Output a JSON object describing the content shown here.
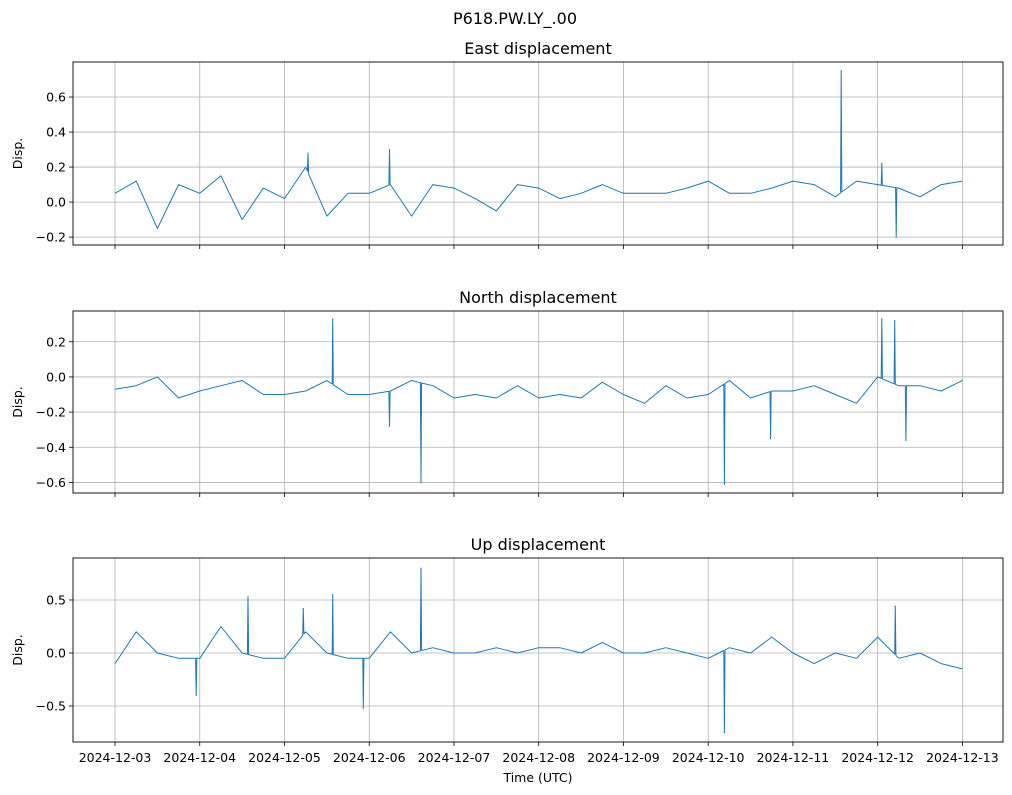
{
  "figure": {
    "suptitle": "P618.PW.LY_.00",
    "xlabel": "Time (UTC)"
  },
  "colors": {
    "line": "#1f77b4",
    "grid": "#b0b0b0"
  },
  "chart_data": [
    {
      "type": "line",
      "title": "East displacement",
      "ylabel": "Disp.",
      "ylim": [
        -0.245,
        0.8
      ],
      "yticks": [
        -0.2,
        0.0,
        0.2,
        0.4,
        0.6
      ],
      "ytick_labels": [
        "−0.2",
        "0.0",
        "0.2",
        "0.4",
        "0.6"
      ],
      "xlim": [
        "2024-12-02 12:06",
        "2024-12-13 11:30"
      ],
      "grid": true,
      "sample_step_hours": 6,
      "start": "2024-12-03 00:00",
      "values": [
        0.05,
        0.12,
        -0.15,
        0.1,
        0.05,
        0.15,
        -0.1,
        0.08,
        0.02,
        0.2,
        -0.08,
        0.05,
        0.05,
        0.1,
        -0.08,
        0.1,
        0.08,
        0.02,
        -0.05,
        0.1,
        0.08,
        0.02,
        0.05,
        0.1,
        0.05,
        0.05,
        0.05,
        0.08,
        0.12,
        0.05,
        0.05,
        0.08,
        0.12,
        0.1,
        0.03,
        0.12,
        0.1,
        0.08,
        0.03,
        0.1,
        0.12
      ],
      "spikes": [
        [
          "2024-12-05 06:40",
          0.28
        ],
        [
          "2024-12-06 05:45",
          0.3
        ],
        [
          "2024-12-11 13:40",
          0.75
        ],
        [
          "2024-12-12 01:10",
          0.22
        ],
        [
          "2024-12-12 05:15",
          -0.2
        ]
      ]
    },
    {
      "type": "line",
      "title": "North displacement",
      "ylabel": "Disp.",
      "ylim": [
        -0.66,
        0.375
      ],
      "yticks": [
        -0.6,
        -0.4,
        -0.2,
        0.0,
        0.2
      ],
      "ytick_labels": [
        "−0.6",
        "−0.4",
        "−0.2",
        "0.0",
        "0.2"
      ],
      "xlim": [
        "2024-12-02 12:06",
        "2024-12-13 11:30"
      ],
      "grid": true,
      "sample_step_hours": 6,
      "start": "2024-12-03 00:00",
      "values": [
        -0.07,
        -0.05,
        0.0,
        -0.12,
        -0.08,
        -0.05,
        -0.02,
        -0.1,
        -0.1,
        -0.08,
        -0.02,
        -0.1,
        -0.1,
        -0.08,
        -0.02,
        -0.05,
        -0.12,
        -0.1,
        -0.12,
        -0.05,
        -0.12,
        -0.1,
        -0.12,
        -0.03,
        -0.1,
        -0.15,
        -0.05,
        -0.12,
        -0.1,
        -0.02,
        -0.12,
        -0.08,
        -0.08,
        -0.05,
        -0.1,
        -0.15,
        0.0,
        -0.05,
        -0.05,
        -0.08,
        -0.02
      ],
      "spikes": [
        [
          "2024-12-05 13:40",
          0.33
        ],
        [
          "2024-12-06 05:45",
          -0.28
        ],
        [
          "2024-12-06 14:40",
          -0.6
        ],
        [
          "2024-12-10 04:35",
          -0.61
        ],
        [
          "2024-12-10 17:40",
          -0.35
        ],
        [
          "2024-12-12 01:10",
          0.33
        ],
        [
          "2024-12-12 04:50",
          0.32
        ],
        [
          "2024-12-12 08:00",
          -0.36
        ]
      ]
    },
    {
      "type": "line",
      "title": "Up displacement",
      "ylabel": "Disp.",
      "ylim": [
        -0.84,
        0.896
      ],
      "yticks": [
        -0.5,
        0.0,
        0.5
      ],
      "ytick_labels": [
        "−0.5",
        "0.0",
        "0.5"
      ],
      "xlim": [
        "2024-12-02 12:06",
        "2024-12-13 11:30"
      ],
      "xticks": [
        "2024-12-03",
        "2024-12-04",
        "2024-12-05",
        "2024-12-06",
        "2024-12-07",
        "2024-12-08",
        "2024-12-09",
        "2024-12-10",
        "2024-12-11",
        "2024-12-12",
        "2024-12-13"
      ],
      "grid": true,
      "sample_step_hours": 6,
      "start": "2024-12-03 00:00",
      "values": [
        -0.1,
        0.2,
        0.0,
        -0.05,
        -0.05,
        0.25,
        0.0,
        -0.05,
        -0.05,
        0.2,
        0.0,
        -0.05,
        -0.05,
        0.2,
        0.0,
        0.05,
        0.0,
        0.0,
        0.05,
        0.0,
        0.05,
        0.05,
        0.0,
        0.1,
        0.0,
        0.0,
        0.05,
        0.0,
        -0.05,
        0.05,
        0.0,
        0.15,
        0.0,
        -0.1,
        0.0,
        -0.05,
        0.15,
        -0.05,
        0.0,
        -0.1,
        -0.15
      ],
      "spikes": [
        [
          "2024-12-03 23:00",
          -0.4
        ],
        [
          "2024-12-04 13:40",
          0.53
        ],
        [
          "2024-12-05 05:20",
          0.42
        ],
        [
          "2024-12-05 13:40",
          0.55
        ],
        [
          "2024-12-05 22:20",
          -0.52
        ],
        [
          "2024-12-06 14:40",
          0.8
        ],
        [
          "2024-12-10 04:35",
          -0.75
        ],
        [
          "2024-12-12 05:00",
          0.44
        ]
      ]
    }
  ]
}
